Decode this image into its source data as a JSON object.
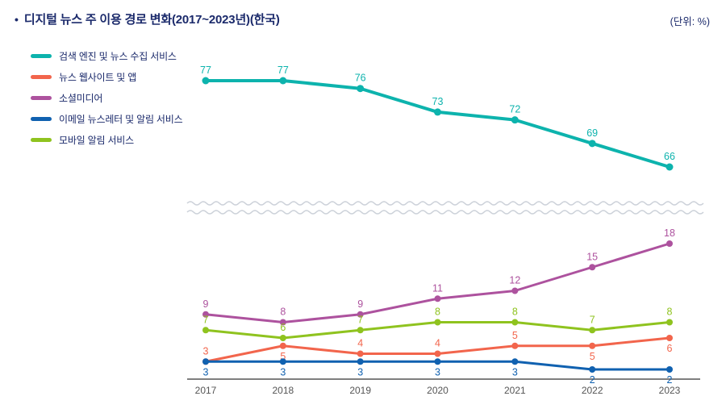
{
  "header": {
    "bullet": "•",
    "title": "디지털 뉴스 주 이용 경로 변화(2017~2023년)(한국)",
    "unit": "(단위: %)"
  },
  "chart_data": {
    "type": "line",
    "title": "디지털 뉴스 주 이용 경로 변화(2017~2023년)(한국)",
    "unit": "%",
    "x": [
      "2017",
      "2018",
      "2019",
      "2020",
      "2021",
      "2022",
      "2023"
    ],
    "series": [
      {
        "name": "검색 엔진 및 뉴스 수집 서비스",
        "color": "#0db3ad",
        "segment": "top",
        "label_position": "above",
        "values": [
          77,
          77,
          76,
          73,
          72,
          69,
          66
        ]
      },
      {
        "name": "뉴스 웹사이트 및 앱",
        "color": "#f2654c",
        "segment": "bottom",
        "label_position": "above",
        "label_sides": [
          "above",
          "below",
          "above",
          "above",
          "above",
          "below",
          "below"
        ],
        "values": [
          3,
          5,
          4,
          4,
          5,
          5,
          6
        ]
      },
      {
        "name": "소셜미디어",
        "color": "#ad529e",
        "segment": "bottom",
        "label_position": "above",
        "values": [
          9,
          8,
          9,
          11,
          12,
          15,
          18
        ]
      },
      {
        "name": "이메일 뉴스레터 및 알림 서비스",
        "color": "#1061b0",
        "segment": "bottom",
        "label_position": "below",
        "values": [
          3,
          3,
          3,
          3,
          3,
          2,
          2
        ]
      },
      {
        "name": "모바일 알림 서비스",
        "color": "#8fc31f",
        "segment": "bottom",
        "label_position": "above",
        "values": [
          7,
          6,
          7,
          8,
          8,
          7,
          8
        ]
      }
    ],
    "axis_break": true,
    "grid": false,
    "legend_position": "top-left",
    "top_segment_range": [
      66,
      77
    ],
    "bottom_segment_range": [
      2,
      18
    ]
  }
}
